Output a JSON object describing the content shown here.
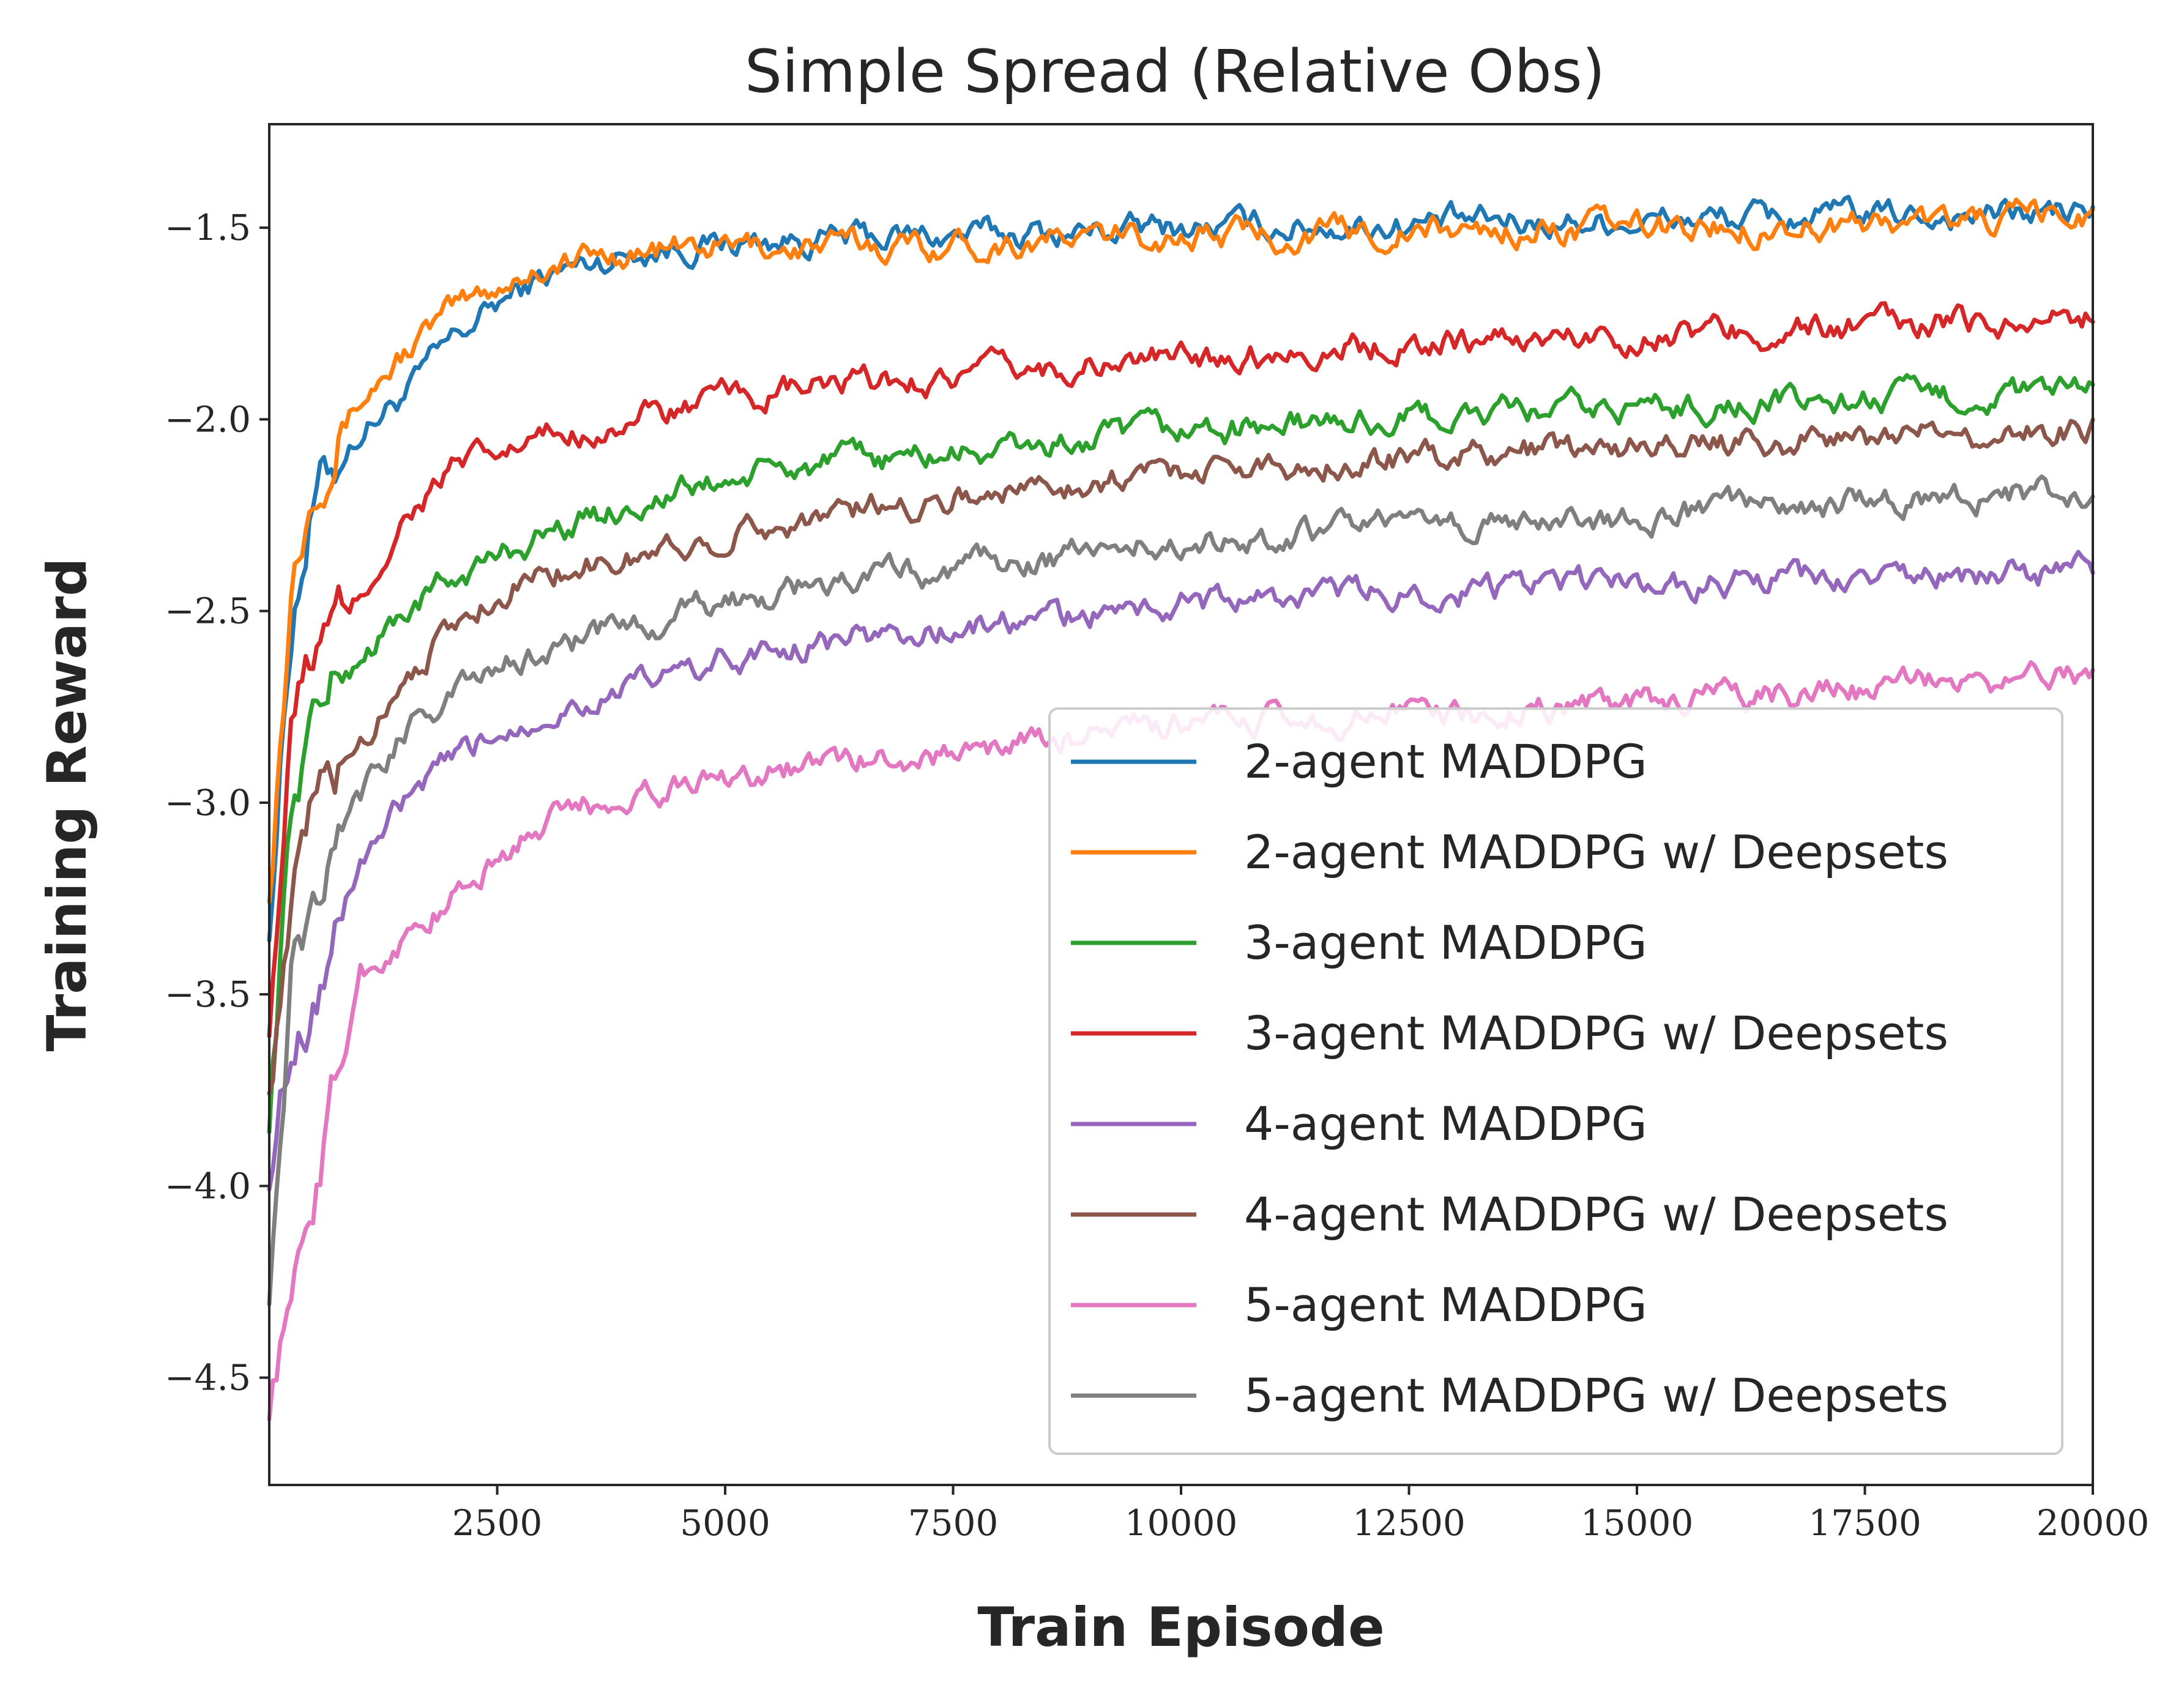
{
  "chart_data": {
    "type": "line",
    "title": "Simple Spread (Relative Obs)",
    "xlabel": "Train Episode",
    "ylabel": "Training Reward",
    "xlim": [
      0,
      20000
    ],
    "ylim": [
      -4.78,
      -1.23
    ],
    "xticks": [
      2500,
      5000,
      7500,
      10000,
      12500,
      15000,
      17500,
      20000
    ],
    "xtick_labels": [
      "2500",
      "5000",
      "7500",
      "10000",
      "12500",
      "15000",
      "17500",
      "20000"
    ],
    "yticks": [
      -1.5,
      -2.0,
      -2.5,
      -3.0,
      -3.5,
      -4.0,
      -4.5
    ],
    "ytick_labels": [
      "−1.5",
      "−2.0",
      "−2.5",
      "−3.0",
      "−3.5",
      "−4.0",
      "−4.5"
    ],
    "grid": false,
    "legend_position": "bottom-right",
    "x": [
      0,
      250,
      500,
      1000,
      1500,
      2000,
      2500,
      3000,
      4000,
      5000,
      6000,
      7500,
      9000,
      10000,
      12500,
      15000,
      17500,
      20000
    ],
    "series": [
      {
        "name": "2-agent MADDPG",
        "color": "#1f77b4",
        "values": [
          -3.3,
          -2.5,
          -2.2,
          -2.03,
          -1.93,
          -1.8,
          -1.7,
          -1.63,
          -1.56,
          -1.54,
          -1.53,
          -1.52,
          -1.51,
          -1.5,
          -1.49,
          -1.48,
          -1.47,
          -1.46
        ]
      },
      {
        "name": "2-agent MADDPG w/ Deepsets",
        "color": "#ff7f0e",
        "values": [
          -3.2,
          -2.4,
          -2.1,
          -1.95,
          -1.82,
          -1.72,
          -1.65,
          -1.6,
          -1.56,
          -1.55,
          -1.55,
          -1.54,
          -1.53,
          -1.52,
          -1.51,
          -1.5,
          -1.49,
          -1.47
        ]
      },
      {
        "name": "3-agent MADDPG",
        "color": "#2ca02c",
        "values": [
          -3.8,
          -3.0,
          -2.75,
          -2.62,
          -2.5,
          -2.42,
          -2.36,
          -2.3,
          -2.22,
          -2.16,
          -2.12,
          -2.09,
          -2.06,
          -2.03,
          -2.0,
          -1.97,
          -1.95,
          -1.93
        ]
      },
      {
        "name": "3-agent MADDPG w/ Deepsets",
        "color": "#d62728",
        "values": [
          -3.55,
          -2.8,
          -2.6,
          -2.47,
          -2.25,
          -2.13,
          -2.1,
          -2.05,
          -2.0,
          -1.95,
          -1.92,
          -1.89,
          -1.86,
          -1.84,
          -1.8,
          -1.78,
          -1.76,
          -1.73
        ]
      },
      {
        "name": "4-agent MADDPG",
        "color": "#9467bd",
        "values": [
          -3.95,
          -3.6,
          -3.5,
          -3.15,
          -3.0,
          -2.9,
          -2.82,
          -2.76,
          -2.7,
          -2.63,
          -2.58,
          -2.55,
          -2.51,
          -2.48,
          -2.45,
          -2.43,
          -2.42,
          -2.4
        ]
      },
      {
        "name": "4-agent MADDPG w/ Deepsets",
        "color": "#8c564b",
        "values": [
          -3.7,
          -3.3,
          -3.0,
          -2.85,
          -2.65,
          -2.55,
          -2.45,
          -2.4,
          -2.36,
          -2.3,
          -2.25,
          -2.2,
          -2.16,
          -2.13,
          -2.1,
          -2.07,
          -2.05,
          -2.02
        ]
      },
      {
        "name": "5-agent MADDPG",
        "color": "#e377c2",
        "values": [
          -4.55,
          -4.3,
          -4.0,
          -3.45,
          -3.35,
          -3.25,
          -3.15,
          -3.05,
          -2.97,
          -2.93,
          -2.9,
          -2.87,
          -2.82,
          -2.8,
          -2.77,
          -2.74,
          -2.71,
          -2.66
        ]
      },
      {
        "name": "5-agent MADDPG w/ Deepsets",
        "color": "#7f7f7f",
        "values": [
          -4.25,
          -3.45,
          -3.25,
          -3.0,
          -2.8,
          -2.72,
          -2.65,
          -2.6,
          -2.54,
          -2.48,
          -2.43,
          -2.39,
          -2.35,
          -2.32,
          -2.28,
          -2.25,
          -2.21,
          -2.18
        ]
      }
    ]
  }
}
